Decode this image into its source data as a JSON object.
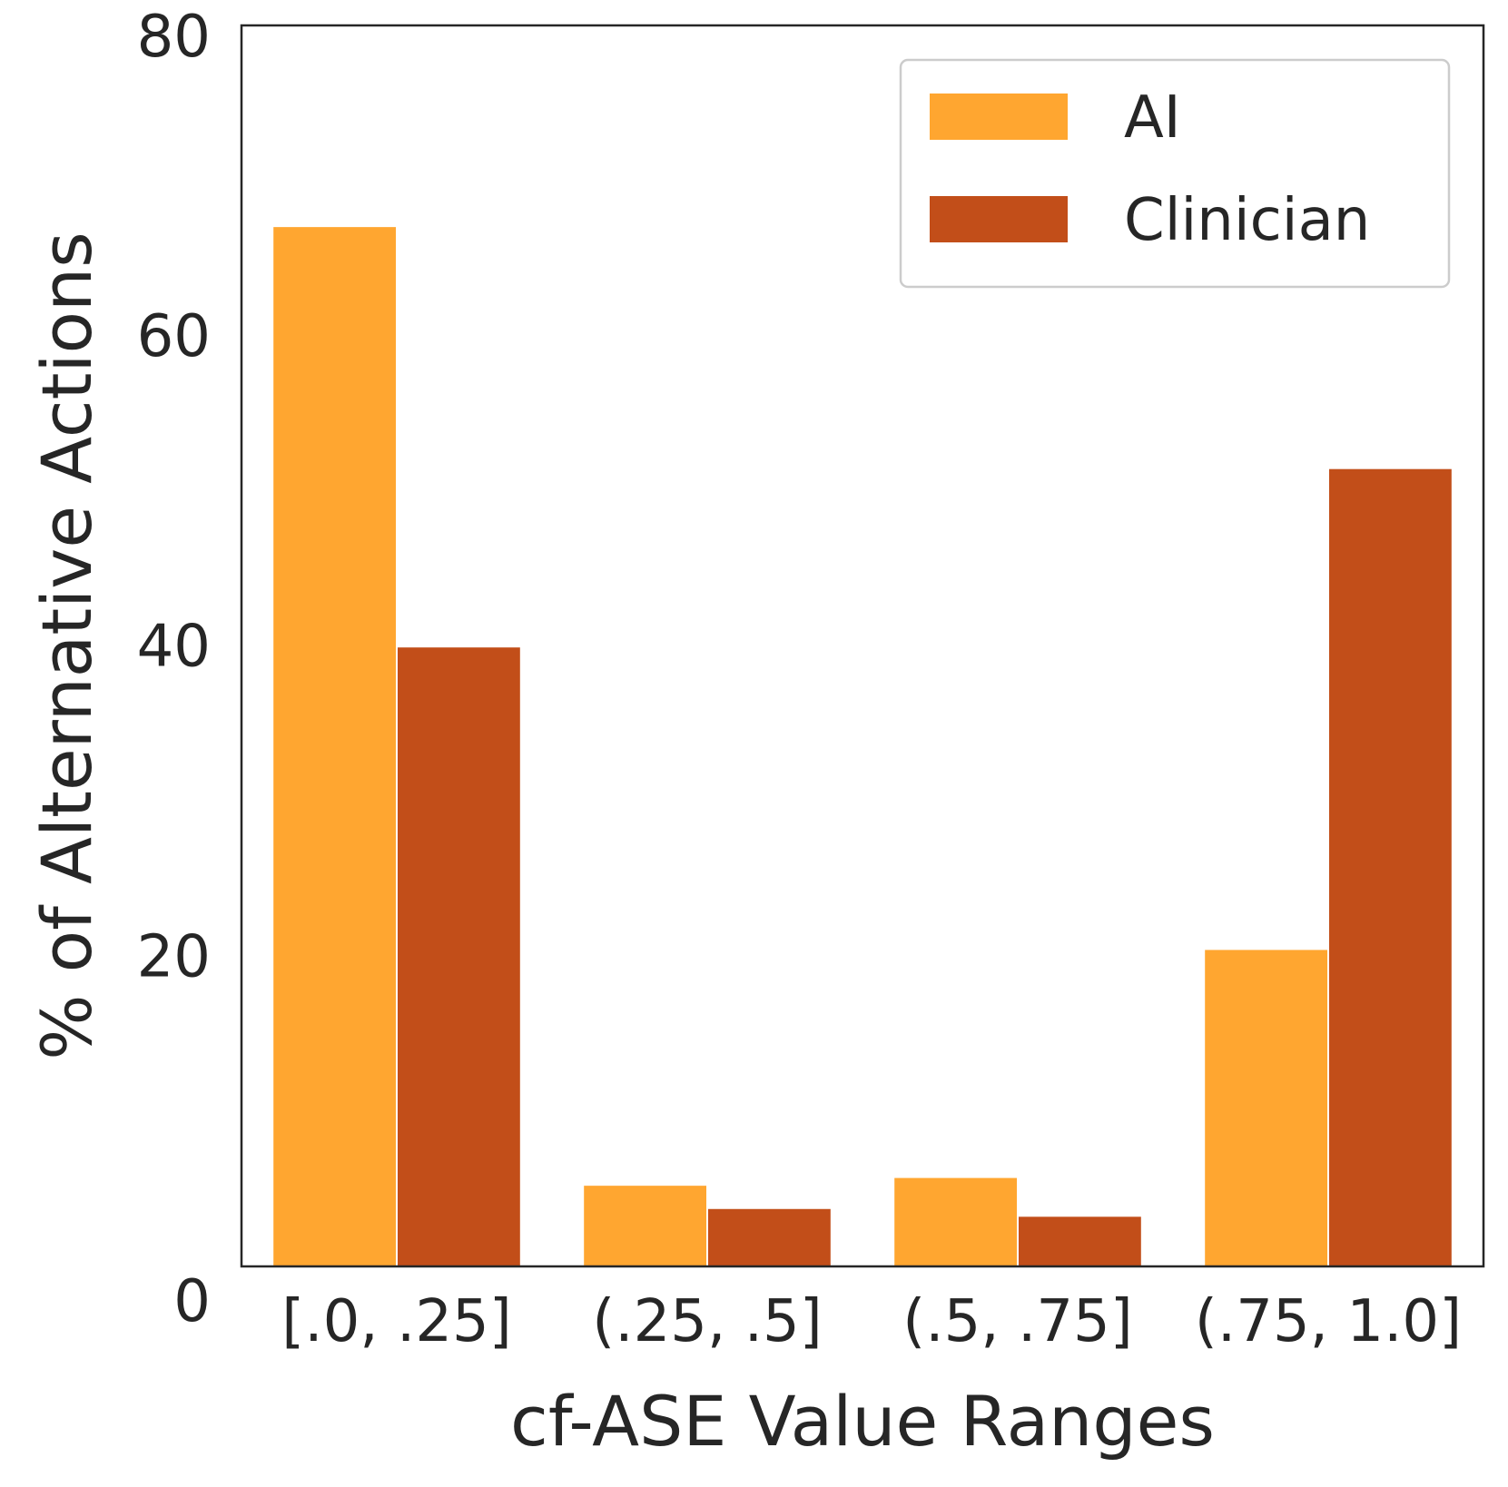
{
  "chart_data": {
    "type": "bar",
    "title": "",
    "xlabel": "cf-ASE Value Ranges",
    "ylabel": "% of Alternative Actions",
    "categories": [
      "[.0, .25]",
      "(.25, .5]",
      "(.5, .75]",
      "(.75, 1.0]"
    ],
    "series": [
      {
        "name": "AI",
        "color": "#FFA630",
        "values": [
          67.0,
          5.2,
          5.7,
          20.4
        ]
      },
      {
        "name": "Clinician",
        "color": "#C24E19",
        "values": [
          39.9,
          3.7,
          3.2,
          51.4
        ]
      }
    ],
    "ylim": [
      0,
      80
    ],
    "yticks": [
      0,
      20,
      40,
      60,
      80
    ],
    "ytick_labels": [
      "0",
      "20",
      "40",
      "60",
      "80"
    ],
    "grid": false,
    "legend_position": "top-right"
  }
}
